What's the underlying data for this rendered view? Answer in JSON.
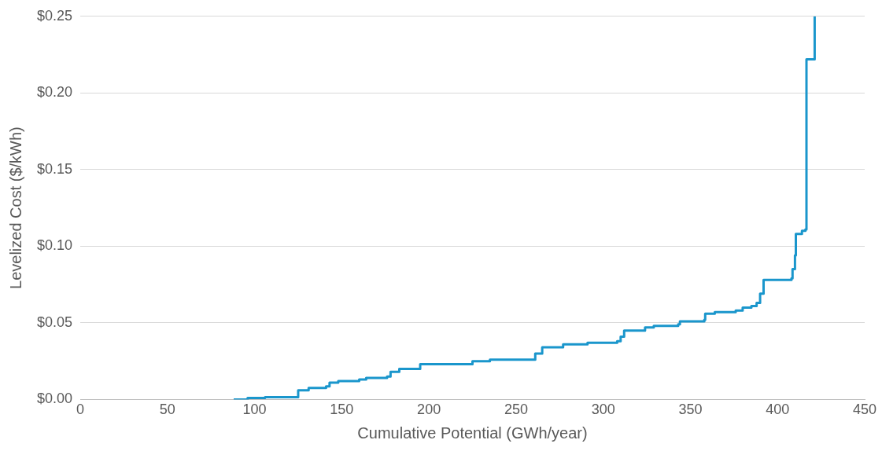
{
  "chart_data": {
    "type": "step",
    "xlabel": "Cumulative Potential (GWh/year)",
    "ylabel": "Levelized Cost ($/kWh)",
    "xlim": [
      0,
      450
    ],
    "xticks": [
      0,
      50,
      100,
      150,
      200,
      250,
      300,
      350,
      400,
      450
    ],
    "ylim": [
      0,
      0.25
    ],
    "yticks": [
      {
        "value": 0,
        "label": "$0.00"
      },
      {
        "value": 0.05,
        "label": "$0.05"
      },
      {
        "value": 0.1,
        "label": "$0.10"
      },
      {
        "value": 0.15,
        "label": "$0.15"
      },
      {
        "value": 0.2,
        "label": "$0.20"
      },
      {
        "value": 0.25,
        "label": "$0.25"
      }
    ],
    "grid": "y",
    "legend": false,
    "marker": "none",
    "line_style": "solid",
    "series": [
      {
        "color": "#1a96cc",
        "x": [
          88,
          95,
          96,
          106,
          122,
          125,
          131,
          141,
          143,
          148,
          160,
          164,
          176,
          178,
          183,
          195,
          221,
          225,
          235,
          258,
          261,
          265,
          277,
          291,
          308,
          310,
          312,
          324,
          329,
          343,
          344,
          358,
          358.5,
          364,
          376,
          380,
          385,
          388,
          390,
          392,
          408,
          408.6,
          410,
          410.5,
          414,
          416,
          416.6,
          421,
          421.3
        ],
        "values": [
          0,
          0,
          0.001,
          0.0015,
          0.0015,
          0.006,
          0.0075,
          0.0085,
          0.011,
          0.012,
          0.013,
          0.014,
          0.015,
          0.018,
          0.02,
          0.023,
          0.023,
          0.025,
          0.026,
          0.026,
          0.03,
          0.034,
          0.036,
          0.037,
          0.038,
          0.041,
          0.045,
          0.047,
          0.048,
          0.049,
          0.051,
          0.052,
          0.056,
          0.057,
          0.058,
          0.06,
          0.061,
          0.063,
          0.069,
          0.078,
          0.079,
          0.085,
          0.094,
          0.108,
          0.11,
          0.111,
          0.222,
          0.222,
          0.25
        ]
      }
    ]
  }
}
